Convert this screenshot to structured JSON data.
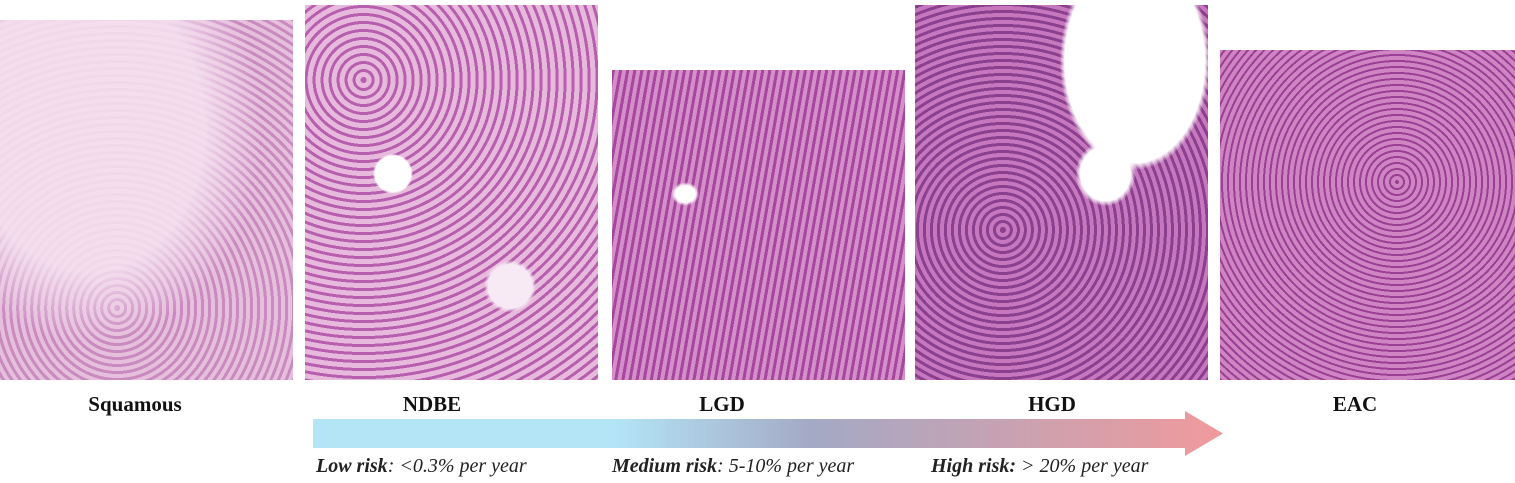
{
  "panels": [
    {
      "id": "squamous",
      "label": "Squamous"
    },
    {
      "id": "ndbe",
      "label": "NDBE"
    },
    {
      "id": "lgd",
      "label": "LGD"
    },
    {
      "id": "hgd",
      "label": "HGD"
    },
    {
      "id": "eac",
      "label": "EAC"
    }
  ],
  "arrow": {
    "colors": {
      "start": "#b3e5f7",
      "middle": "#a4a9c5",
      "end": "#f09a9c"
    }
  },
  "risk": {
    "low": {
      "label": "Low risk",
      "value": ": <0.3% per year"
    },
    "medium": {
      "label": "Medium risk",
      "value": ": 5-10% per year"
    },
    "high": {
      "label": "High risk:",
      "value": " > 20% per year"
    }
  }
}
